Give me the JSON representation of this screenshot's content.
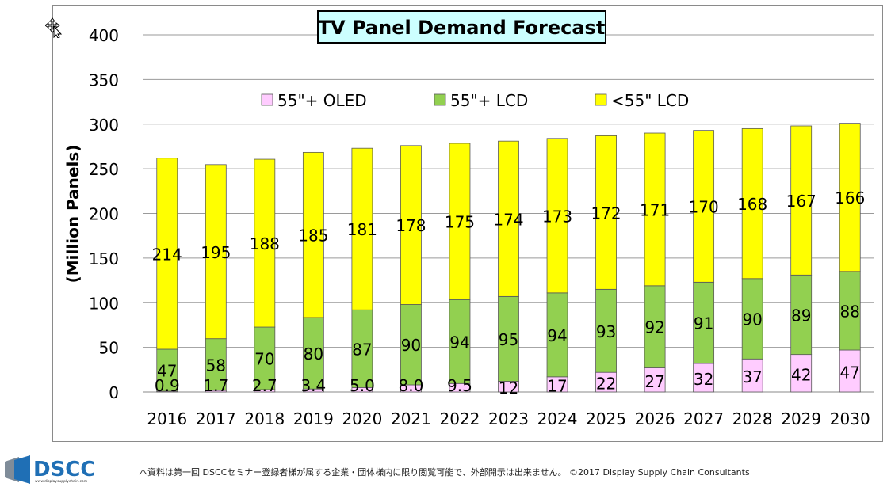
{
  "chart_data": {
    "type": "bar",
    "stacked": true,
    "title": "TV Panel Demand Forecast",
    "ylabel": "(Million Panels)",
    "xlabel": "",
    "ylim": [
      0,
      400
    ],
    "yticks": [
      0,
      50,
      100,
      150,
      200,
      250,
      300,
      350,
      400
    ],
    "grid": true,
    "legend_position": "top",
    "categories": [
      "2016",
      "2017",
      "2018",
      "2019",
      "2020",
      "2021",
      "2022",
      "2023",
      "2024",
      "2025",
      "2026",
      "2027",
      "2028",
      "2029",
      "2030"
    ],
    "series": [
      {
        "name": "55\"+ OLED",
        "color": "#ffccff",
        "values": [
          0.9,
          1.7,
          2.7,
          3.4,
          5.0,
          8.0,
          9.5,
          12,
          17,
          22,
          27,
          32,
          37,
          42,
          47
        ],
        "labels": [
          "0.9",
          "1.7",
          "2.7",
          "3.4",
          "5.0",
          "8.0",
          "9.5",
          "12",
          "17",
          "22",
          "27",
          "32",
          "37",
          "42",
          "47"
        ]
      },
      {
        "name": "55\"+ LCD",
        "color": "#92d050",
        "values": [
          47,
          58,
          70,
          80,
          87,
          90,
          94,
          95,
          94,
          93,
          92,
          91,
          90,
          89,
          88
        ],
        "labels": [
          "47",
          "58",
          "70",
          "80",
          "87",
          "90",
          "94",
          "95",
          "94",
          "93",
          "92",
          "91",
          "90",
          "89",
          "88"
        ]
      },
      {
        "name": "<55\" LCD",
        "color": "#ffff00",
        "values": [
          214,
          195,
          188,
          185,
          181,
          178,
          175,
          174,
          173,
          172,
          171,
          170,
          168,
          167,
          166
        ],
        "labels": [
          "214",
          "195",
          "188",
          "185",
          "181",
          "178",
          "175",
          "174",
          "173",
          "172",
          "171",
          "170",
          "168",
          "167",
          "166"
        ]
      }
    ]
  },
  "footer": {
    "logo_text": "DSCC",
    "logo_subtext": "www.displaysupplychain.com",
    "note": "本資料は第一回 DSCCセミナー登録者様が属する企業・団体様内に限り閲覧可能で、外部開示は出来ません。 ©2017 Display Supply Chain Consultants"
  },
  "colors": {
    "logo_blue": "#1f6fb5",
    "logo_gray": "#7f8c99",
    "title_border": "#000000",
    "title_bg": "#ccffff"
  }
}
